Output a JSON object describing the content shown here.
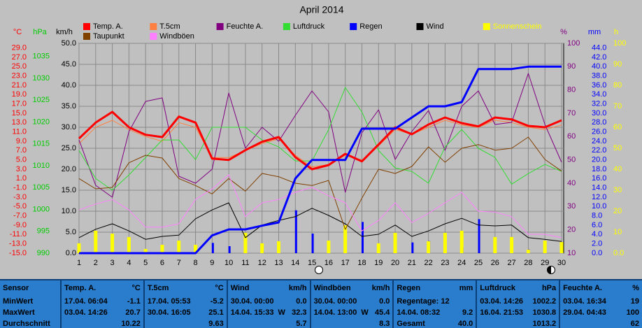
{
  "chart_data": {
    "type": "line",
    "title": "April 2014",
    "categories": [
      "1",
      "2",
      "3",
      "4",
      "5",
      "6",
      "7",
      "8",
      "9",
      "10",
      "11",
      "12",
      "13",
      "14",
      "15",
      "16",
      "17",
      "18",
      "19",
      "20",
      "21",
      "22",
      "23",
      "24",
      "25",
      "26",
      "27",
      "28",
      "29",
      "30"
    ],
    "grid": true,
    "grid_axis": "wind",
    "axes": {
      "temp": {
        "label": "°C",
        "color": "#ff0000",
        "lim": [
          -15,
          30
        ],
        "ticks": [
          {
            "value": -15,
            "label": "-15.0"
          },
          {
            "value": -13,
            "label": "-13.0"
          },
          {
            "value": -11,
            "label": "-11.0"
          },
          {
            "value": -9,
            "label": "-9.0"
          },
          {
            "value": -7,
            "label": "-7.0"
          },
          {
            "value": -5,
            "label": "-5.0"
          },
          {
            "value": -3,
            "label": "-3.0"
          },
          {
            "value": -1,
            "label": "-1.0"
          },
          {
            "value": 1,
            "label": "1.0"
          },
          {
            "value": 3,
            "label": "3.0"
          },
          {
            "value": 5,
            "label": "5.0"
          },
          {
            "value": 7,
            "label": "7.0"
          },
          {
            "value": 9,
            "label": "9.0"
          },
          {
            "value": 11,
            "label": "11.0"
          },
          {
            "value": 13,
            "label": "13.0"
          },
          {
            "value": 15,
            "label": "15.0"
          },
          {
            "value": 17,
            "label": "17.0"
          },
          {
            "value": 19,
            "label": "19.0"
          },
          {
            "value": 21,
            "label": "21.0"
          },
          {
            "value": 23,
            "label": "23.0"
          },
          {
            "value": 25,
            "label": "25.0"
          },
          {
            "value": 27,
            "label": "27.0"
          },
          {
            "value": 29,
            "label": "29.0"
          }
        ]
      },
      "hpa": {
        "label": "hPa",
        "color": "#00cc00",
        "lim": [
          990,
          1038
        ],
        "ticks": [
          990,
          995,
          1000,
          1005,
          1010,
          1015,
          1020,
          1025,
          1030,
          1035
        ]
      },
      "wind": {
        "label": "km/h",
        "color": "#000000",
        "lim": [
          0,
          50
        ],
        "ticks": [
          {
            "value": 0,
            "label": "0.0"
          },
          {
            "value": 5,
            "label": "5.0"
          },
          {
            "value": 10,
            "label": "10.0"
          },
          {
            "value": 15,
            "label": "15.0"
          },
          {
            "value": 20,
            "label": "20.0"
          },
          {
            "value": 25,
            "label": "25.0"
          },
          {
            "value": 30,
            "label": "30.0"
          },
          {
            "value": 35,
            "label": "35.0"
          },
          {
            "value": 40,
            "label": "40.0"
          },
          {
            "value": 45,
            "label": "45.0"
          },
          {
            "value": 50,
            "label": "50.0"
          }
        ]
      },
      "pct": {
        "label": "%",
        "color": "#800080",
        "lim": [
          10,
          100
        ],
        "ticks": [
          10,
          20,
          30,
          40,
          50,
          60,
          70,
          80,
          90,
          100
        ]
      },
      "mm": {
        "label": "mm",
        "color": "#0000ff",
        "lim": [
          0,
          45
        ],
        "ticks": [
          {
            "value": 0,
            "label": "0.0"
          },
          {
            "value": 2,
            "label": "2.0"
          },
          {
            "value": 4,
            "label": "4.0"
          },
          {
            "value": 6,
            "label": "6.0"
          },
          {
            "value": 8,
            "label": "8.0"
          },
          {
            "value": 10,
            "label": "10.0"
          },
          {
            "value": 12,
            "label": "12.0"
          },
          {
            "value": 14,
            "label": "14.0"
          },
          {
            "value": 16,
            "label": "16.0"
          },
          {
            "value": 18,
            "label": "18.0"
          },
          {
            "value": 20,
            "label": "20.0"
          },
          {
            "value": 22,
            "label": "22.0"
          },
          {
            "value": 24,
            "label": "24.0"
          },
          {
            "value": 26,
            "label": "26.0"
          },
          {
            "value": 28,
            "label": "28.0"
          },
          {
            "value": 30,
            "label": "30.0"
          },
          {
            "value": 32,
            "label": "32.0"
          },
          {
            "value": 34,
            "label": "34.0"
          },
          {
            "value": 36,
            "label": "36.0"
          },
          {
            "value": 38,
            "label": "38.0"
          },
          {
            "value": 40,
            "label": "40.0"
          },
          {
            "value": 42,
            "label": "42.0"
          },
          {
            "value": 44,
            "label": "44.0"
          }
        ]
      },
      "h": {
        "label": "h",
        "color": "#ffff00",
        "lim": [
          0,
          100
        ],
        "ticks": [
          {
            "value": 0,
            "label": "0.0"
          },
          10,
          20,
          30,
          40,
          50,
          60,
          70,
          80,
          90,
          100
        ]
      }
    },
    "series": [
      {
        "name": "Temp. A.",
        "color": "#ff0000",
        "axis": "temp",
        "type": "line",
        "line_width": 3,
        "values": [
          9.6,
          13.0,
          15.3,
          12.0,
          10.4,
          9.9,
          14.3,
          13.0,
          5.3,
          5.0,
          7.1,
          8.9,
          9.9,
          5.6,
          3.0,
          3.9,
          6.3,
          4.7,
          8.3,
          12.0,
          10.5,
          12.6,
          14.1,
          12.9,
          12.2,
          14.1,
          13.7,
          12.3,
          12.0,
          13.5
        ]
      },
      {
        "name": "T.5cm",
        "color": "#ff8040",
        "axis": "temp",
        "type": "line",
        "line_width": 1,
        "values": [
          8.5,
          12.0,
          13.5,
          11.5,
          10.0,
          9.0,
          13.0,
          12.0,
          5.5,
          5.5,
          7.0,
          8.5,
          9.5,
          6.0,
          3.5,
          4.0,
          6.0,
          5.0,
          8.0,
          11.5,
          10.5,
          12.0,
          13.5,
          12.5,
          12.0,
          13.5,
          13.0,
          12.0,
          11.5,
          12.5
        ]
      },
      {
        "name": "Feuchte A.",
        "color": "#800080",
        "axis": "pct",
        "type": "line",
        "line_width": 1,
        "values": [
          58.6,
          39.1,
          34.0,
          62.2,
          75.1,
          76.6,
          43.0,
          40.0,
          46.0,
          78.7,
          55.0,
          64.0,
          58.0,
          69.1,
          79.6,
          70.6,
          36.1,
          61.6,
          71.5,
          50.2,
          62.2,
          71.2,
          54.1,
          73.0,
          79.6,
          65.2,
          66.1,
          87.1,
          65.2,
          49.0
        ]
      },
      {
        "name": "Luftdruck",
        "color": "#33dd33",
        "axis": "hpa",
        "type": "line",
        "line_width": 1,
        "values": [
          1013.5,
          1007.1,
          1004.4,
          1007.9,
          1011.9,
          1015.9,
          1015.9,
          1011.4,
          1018.8,
          1018.8,
          1018.8,
          1015.9,
          1014.3,
          1011.1,
          1011.1,
          1018.3,
          1027.9,
          1022.3,
          1013.5,
          1009.5,
          1008.7,
          1006.0,
          1014.3,
          1018.3,
          1014.0,
          1011.9,
          1005.8,
          1008.2,
          1010.3,
          1008.7
        ]
      },
      {
        "name": "Regen",
        "color": "#0000ff",
        "axis": "mm",
        "type": "line",
        "line_width": 3,
        "values": [
          0,
          0,
          0,
          0,
          0,
          0,
          0,
          0,
          3.8,
          5.1,
          5.1,
          5.9,
          6.6,
          16.0,
          20.0,
          20.0,
          20.0,
          26.7,
          26.7,
          26.7,
          29.1,
          31.5,
          31.5,
          32.4,
          39.5,
          39.5,
          39.5,
          40.0,
          40.0,
          40.0
        ],
        "daily": [
          0,
          0,
          0,
          0,
          0,
          0,
          0,
          0,
          2.2,
          1.5,
          0,
          0.5,
          1.2,
          9.2,
          4.2,
          0,
          0,
          6.7,
          0,
          0,
          2.3,
          2.6,
          0,
          1.2,
          7.3,
          0,
          0,
          0.8,
          0,
          0
        ]
      },
      {
        "name": "Wind",
        "color": "#000000",
        "axis": "wind",
        "type": "line",
        "line_width": 1,
        "values": [
          3.7,
          5.7,
          7.0,
          5.3,
          3.3,
          4.0,
          4.3,
          8.2,
          10.3,
          12.0,
          3.7,
          6.7,
          7.8,
          8.7,
          10.7,
          9.0,
          7.0,
          4.0,
          4.5,
          6.7,
          4.0,
          5.3,
          7.0,
          8.3,
          6.7,
          6.5,
          6.7,
          3.7,
          3.3,
          2.8
        ]
      },
      {
        "name": "Sonnenschein",
        "color": "#ffff00",
        "label_color": "#ffff00",
        "axis": "h",
        "type": "bar",
        "values": [
          4.7,
          10.7,
          9.3,
          7.7,
          2.0,
          4.0,
          6.0,
          4.0,
          0,
          0,
          9.7,
          4.7,
          5.7,
          0,
          0,
          6.0,
          13.3,
          0,
          4.7,
          9.7,
          0,
          5.7,
          9.7,
          10.7,
          0,
          7.7,
          7.7,
          1.7,
          6.0,
          5.3
        ]
      },
      {
        "name": "Taupunkt",
        "color": "#804000",
        "axis": "temp",
        "type": "line",
        "line_width": 1,
        "values": [
          1.0,
          -1.2,
          -0.9,
          4.4,
          6.0,
          5.4,
          1.0,
          -0.5,
          -2.3,
          1.0,
          -1.7,
          2.1,
          1.4,
          0.0,
          -0.5,
          0.6,
          -9.9,
          -3.2,
          3.0,
          2.1,
          3.6,
          7.8,
          4.5,
          7.5,
          8.3,
          7.1,
          7.5,
          9.9,
          5.1,
          2.6
        ]
      },
      {
        "name": "Windböen",
        "color": "#ff80ff",
        "axis": "wind",
        "type": "line",
        "line_width": 1,
        "values": [
          10.3,
          11.7,
          12.8,
          10.3,
          6.2,
          6.2,
          7.0,
          12.8,
          15.3,
          18.7,
          8.7,
          12.0,
          12.8,
          14.5,
          15.7,
          13.7,
          12.0,
          5.3,
          7.8,
          12.0,
          7.3,
          9.5,
          12.0,
          14.5,
          10.0,
          9.8,
          8.7,
          4.5,
          4.5,
          3.7
        ]
      }
    ]
  },
  "table": {
    "columns": [
      {
        "name": "Sensor"
      },
      {
        "name": "Temp. A.",
        "unit": "°C"
      },
      {
        "name": "T.5cm",
        "unit": "°C"
      },
      {
        "name": "Wind",
        "unit": "km/h"
      },
      {
        "name": "Windböen",
        "unit": "km/h"
      },
      {
        "name": "Regen",
        "unit": "mm"
      },
      {
        "name": "Luftdruck",
        "unit": "hPa"
      },
      {
        "name": "Feuchte A.",
        "unit": "%"
      }
    ],
    "rows": [
      {
        "label": "MinWert",
        "cells": [
          {
            "time": "17.04. 06:04",
            "value": "-1.1"
          },
          {
            "time": "17.04. 05:53",
            "value": "-5.2"
          },
          {
            "time": "30.04. 00:00",
            "value": "0.0"
          },
          {
            "time": "30.04. 00:00",
            "value": "0.0"
          },
          {
            "time": "Regentage: 12"
          },
          {
            "time": "03.04. 14:26",
            "value": "1002.2"
          },
          {
            "time": "03.04. 16:34",
            "value": "19"
          }
        ]
      },
      {
        "label": "MaxWert",
        "cells": [
          {
            "time": "03.04. 14:26",
            "value": "20.7"
          },
          {
            "time": "30.04. 16:05",
            "value": "25.1"
          },
          {
            "time": "14.04. 15:33",
            "dir": "W",
            "value": "32.3"
          },
          {
            "time": "14.04. 13:00",
            "dir": "W",
            "value": "45.4"
          },
          {
            "time": "14.04. 08:32",
            "value": "9.2"
          },
          {
            "time": "16.04. 21:53",
            "value": "1030.8"
          },
          {
            "time": "29.04. 04:43",
            "value": "100"
          }
        ]
      },
      {
        "label": "Durchschnitt",
        "cells": [
          {
            "value": "10.22"
          },
          {
            "value": "9.63"
          },
          {
            "value": "5.7"
          },
          {
            "value": "8.3"
          },
          {
            "time": "Gesamt",
            "value": "40.0"
          },
          {
            "value": "1013.2"
          },
          {
            "value": "62"
          }
        ]
      }
    ]
  }
}
